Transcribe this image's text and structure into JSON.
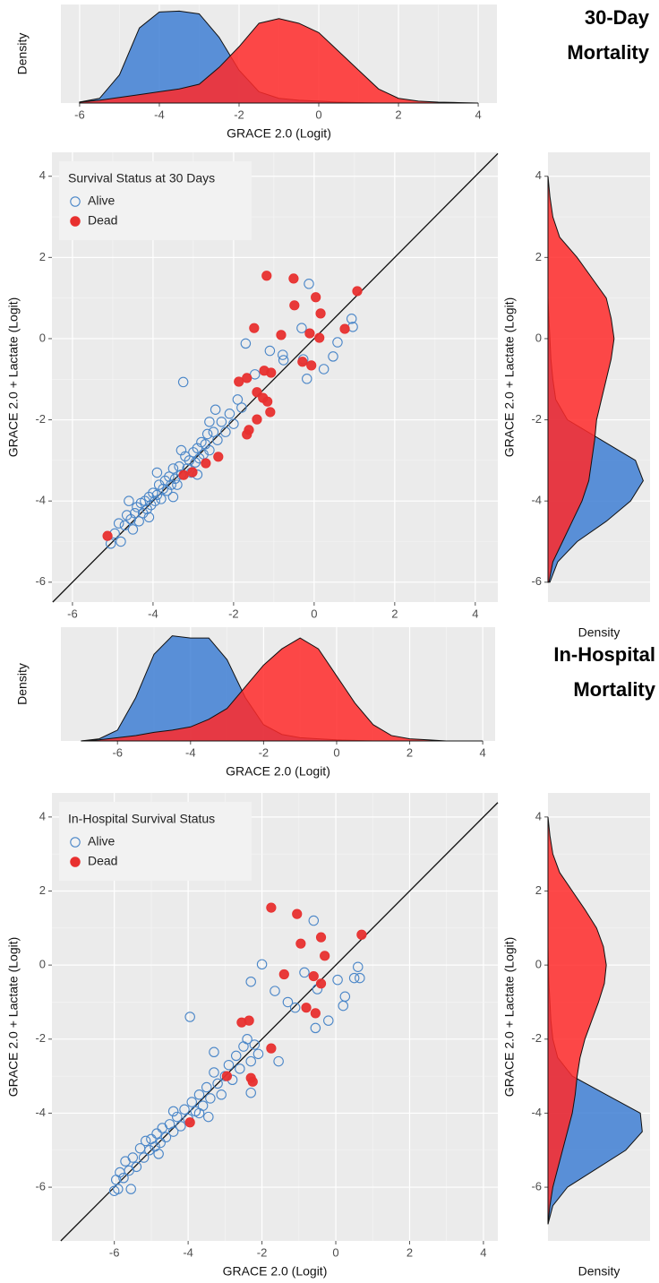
{
  "chart_data": [
    {
      "type": "density",
      "title": "30-Day Mortality",
      "x_label": "GRACE 2.0 (Logit)",
      "y_label": "Density",
      "x": [
        -6,
        -5.5,
        -5,
        -4.5,
        -4,
        -3.5,
        -3,
        -2.5,
        -2,
        -1.5,
        -1,
        -0.5,
        0,
        0.5,
        1,
        1.5,
        2,
        2.5,
        3,
        3.5,
        4
      ],
      "series": [
        {
          "name": "Alive",
          "color": "#3f7fd4",
          "values": [
            0.01,
            0.05,
            0.3,
            0.8,
            0.97,
            0.98,
            0.95,
            0.7,
            0.35,
            0.12,
            0.05,
            0.03,
            0.02,
            0.01,
            0.005,
            0,
            0,
            0,
            0,
            0,
            0
          ]
        },
        {
          "name": "Dead",
          "color": "#ff2a2a",
          "values": [
            0.01,
            0.03,
            0.06,
            0.09,
            0.12,
            0.15,
            0.2,
            0.38,
            0.6,
            0.85,
            0.9,
            0.85,
            0.75,
            0.55,
            0.35,
            0.15,
            0.05,
            0.02,
            0.01,
            0.005,
            0
          ]
        }
      ],
      "fill_alpha": 0.85,
      "xlim": [
        -6.47,
        4.47
      ],
      "xticks": [
        -6,
        -4,
        -2,
        0,
        2,
        4
      ],
      "ylim": [
        0,
        1.05
      ],
      "grid": true
    },
    {
      "type": "scatter",
      "x_label": "GRACE 2.0 (Logit)",
      "y_label": "GRACE 2.0 + Lactate (Logit)",
      "legend_title": "Survival Status at 30 Days",
      "legend": "top-left",
      "identity_line": true,
      "grid": true,
      "xlim": [
        -6.51,
        4.56
      ],
      "xticks": [
        -6,
        -4,
        -2,
        0,
        2,
        4
      ],
      "ylim": [
        -6.49,
        4.59
      ],
      "yticks": [
        -6,
        -4,
        -2,
        0,
        2,
        4
      ],
      "series": [
        {
          "name": "Alive",
          "color": "#4a86c8",
          "marker": "open",
          "x": [
            -5.05,
            -4.95,
            -4.85,
            -4.8,
            -4.7,
            -4.65,
            -4.55,
            -4.5,
            -4.45,
            -4.4,
            -4.35,
            -4.3,
            -4.25,
            -4.2,
            -4.15,
            -4.1,
            -4.05,
            -4.0,
            -3.95,
            -3.9,
            -3.85,
            -3.8,
            -3.75,
            -3.7,
            -3.65,
            -3.6,
            -3.55,
            -3.5,
            -3.45,
            -3.4,
            -3.35,
            -3.3,
            -3.25,
            -3.2,
            -3.15,
            -3.1,
            -3.05,
            -3.0,
            -2.95,
            -2.9,
            -2.85,
            -2.8,
            -2.75,
            -2.7,
            -2.65,
            -2.6,
            -2.5,
            -2.45,
            -2.4,
            -2.3,
            -2.2,
            -2.1,
            -2.0,
            -1.9,
            -1.8,
            -1.7,
            -1.47,
            -1.1,
            -0.78,
            -0.76,
            -0.31,
            -0.27,
            -0.18,
            -0.13,
            0.24,
            0.47,
            0.58,
            0.93,
            0.96,
            -4.6,
            -3.9,
            -3.3,
            -2.6,
            -4.1,
            -3.5,
            -2.9
          ],
          "values": [
            -5.05,
            -4.8,
            -4.55,
            -5.0,
            -4.6,
            -4.35,
            -4.45,
            -4.7,
            -4.3,
            -4.15,
            -4.5,
            -4.05,
            -4.3,
            -4.0,
            -4.2,
            -3.9,
            -4.1,
            -3.8,
            -4.0,
            -3.85,
            -3.6,
            -3.95,
            -3.7,
            -3.5,
            -3.75,
            -3.4,
            -3.6,
            -3.2,
            -3.45,
            -3.6,
            -3.15,
            -3.35,
            -1.07,
            -2.9,
            -3.2,
            -3.0,
            -3.3,
            -2.8,
            -3.05,
            -2.7,
            -2.95,
            -2.55,
            -2.85,
            -2.6,
            -2.35,
            -2.75,
            -2.3,
            -1.75,
            -2.5,
            -2.05,
            -2.3,
            -1.85,
            -2.1,
            -1.5,
            -1.7,
            -0.12,
            -0.88,
            -0.3,
            -0.4,
            -0.53,
            0.26,
            -0.51,
            -0.99,
            1.35,
            -0.75,
            -0.44,
            -0.09,
            0.49,
            0.29,
            -4.0,
            -3.3,
            -2.75,
            -2.05,
            -4.4,
            -3.9,
            -3.35
          ]
        },
        {
          "name": "Dead",
          "color": "#e8302f",
          "marker": "filled",
          "x": [
            -1.18,
            -0.51,
            0.04,
            -0.49,
            1.07,
            0.16,
            -1.49,
            -0.82,
            -0.11,
            0.76,
            0.13,
            -1.07,
            -0.07,
            -0.29,
            -1.67,
            -1.87,
            -1.24,
            -1.27,
            -1.16,
            -1.42,
            -1.09,
            -1.42,
            -1.62,
            -1.67,
            -2.38,
            -2.69,
            -3.02,
            -3.24,
            -5.13
          ],
          "values": [
            1.55,
            1.48,
            1.02,
            0.82,
            1.17,
            0.62,
            0.26,
            0.09,
            0.13,
            0.24,
            0.02,
            -0.84,
            -0.66,
            -0.57,
            -0.97,
            -1.06,
            -0.79,
            -1.46,
            -1.55,
            -1.32,
            -1.81,
            -1.99,
            -2.25,
            -2.36,
            -2.91,
            -3.07,
            -3.29,
            -3.36,
            -4.86
          ]
        }
      ]
    },
    {
      "type": "density",
      "x_label": "Density",
      "y_label": "GRACE 2.0 + Lactate (Logit)",
      "y": [
        -6,
        -5.5,
        -5,
        -4.5,
        -4,
        -3.5,
        -3,
        -2.5,
        -2,
        -1.5,
        -1,
        -0.5,
        0,
        0.5,
        1,
        1.5,
        2,
        2.5,
        3,
        3.5,
        4
      ],
      "series": [
        {
          "name": "Alive",
          "color": "#3f7fd4",
          "values": [
            0.02,
            0.1,
            0.3,
            0.6,
            0.85,
            0.98,
            0.9,
            0.55,
            0.2,
            0.08,
            0.05,
            0.03,
            0.02,
            0.01,
            0,
            0,
            0,
            0,
            0,
            0,
            0
          ]
        },
        {
          "name": "Dead",
          "color": "#ff2a2a",
          "values": [
            0.01,
            0.05,
            0.15,
            0.25,
            0.35,
            0.42,
            0.45,
            0.48,
            0.5,
            0.55,
            0.6,
            0.65,
            0.68,
            0.65,
            0.6,
            0.45,
            0.3,
            0.12,
            0.05,
            0.02,
            0
          ]
        }
      ],
      "fill_alpha": 0.85,
      "ylim": [
        -6.49,
        4.59
      ],
      "yticks": [
        -6,
        -4,
        -2,
        0,
        2,
        4
      ],
      "xlim": [
        0,
        1.05
      ],
      "grid": true
    },
    {
      "type": "density",
      "title": "In-Hospital Mortality",
      "x_label": "GRACE 2.0 (Logit)",
      "y_label": "Density",
      "x": [
        -7,
        -6.5,
        -6,
        -5.5,
        -5,
        -4.5,
        -4,
        -3.5,
        -3,
        -2.5,
        -2,
        -1.5,
        -1,
        -0.5,
        0,
        0.5,
        1,
        1.5,
        2,
        2.5,
        3,
        3.5,
        4
      ],
      "series": [
        {
          "name": "Alive",
          "color": "#3f7fd4",
          "values": [
            0,
            0.02,
            0.1,
            0.4,
            0.8,
            0.97,
            0.95,
            0.95,
            0.75,
            0.4,
            0.15,
            0.06,
            0.03,
            0.02,
            0.01,
            0.005,
            0,
            0,
            0,
            0,
            0,
            0,
            0
          ]
        },
        {
          "name": "Dead",
          "color": "#ff2a2a",
          "values": [
            0,
            0.01,
            0.03,
            0.05,
            0.08,
            0.1,
            0.13,
            0.2,
            0.3,
            0.5,
            0.7,
            0.85,
            0.95,
            0.85,
            0.6,
            0.35,
            0.15,
            0.05,
            0.02,
            0.01,
            0,
            0,
            0
          ]
        }
      ],
      "fill_alpha": 0.85,
      "xlim": [
        -7.55,
        4.34
      ],
      "xticks": [
        -6,
        -4,
        -2,
        0,
        2,
        4
      ],
      "ylim": [
        0,
        1.05
      ],
      "grid": true
    },
    {
      "type": "scatter",
      "x_label": "GRACE 2.0 (Logit)",
      "y_label": "GRACE 2.0 + Lactate (Logit)",
      "legend_title": "In-Hospital Survival Status",
      "legend": "top-left",
      "identity_line": true,
      "grid": true,
      "xlim": [
        -7.69,
        4.39
      ],
      "xticks": [
        -6,
        -4,
        -2,
        0,
        2,
        4
      ],
      "ylim": [
        -7.45,
        4.65
      ],
      "yticks": [
        -6,
        -4,
        -2,
        0,
        2,
        4
      ],
      "series": [
        {
          "name": "Alive",
          "color": "#4a86c8",
          "marker": "open",
          "x": [
            -6.0,
            -5.95,
            -5.9,
            -5.85,
            -5.75,
            -5.7,
            -5.6,
            -5.55,
            -5.5,
            -5.4,
            -5.3,
            -5.2,
            -5.15,
            -5.05,
            -5.0,
            -4.9,
            -4.85,
            -4.75,
            -4.7,
            -4.6,
            -4.5,
            -4.4,
            -4.3,
            -4.2,
            -4.1,
            -4.0,
            -3.95,
            -3.9,
            -3.8,
            -3.7,
            -3.6,
            -3.5,
            -3.45,
            -3.4,
            -3.3,
            -3.2,
            -3.1,
            -3.0,
            -2.9,
            -2.8,
            -2.7,
            -2.6,
            -2.5,
            -2.4,
            -2.3,
            -2.3,
            -2.2,
            -2.1,
            -2.0,
            -2.3,
            -1.65,
            -1.55,
            -1.3,
            -1.1,
            -0.85,
            -0.6,
            -0.55,
            -0.5,
            -0.2,
            0.05,
            0.2,
            0.25,
            0.5,
            0.6,
            0.65,
            -4.8,
            -4.4,
            -3.7,
            -3.3
          ],
          "values": [
            -6.1,
            -5.8,
            -6.05,
            -5.6,
            -5.75,
            -5.3,
            -5.55,
            -6.05,
            -5.2,
            -5.45,
            -4.95,
            -5.2,
            -4.75,
            -5.0,
            -4.7,
            -4.9,
            -4.55,
            -4.8,
            -4.4,
            -4.65,
            -4.3,
            -4.5,
            -4.1,
            -4.35,
            -3.9,
            -4.15,
            -1.4,
            -3.7,
            -3.95,
            -3.5,
            -3.8,
            -3.3,
            -4.1,
            -3.6,
            -2.35,
            -3.2,
            -3.5,
            -3.0,
            -2.7,
            -3.1,
            -2.45,
            -2.8,
            -2.2,
            -2.0,
            -2.6,
            -3.45,
            -2.15,
            -2.4,
            0.02,
            -0.45,
            -0.7,
            -2.6,
            -1.0,
            -1.15,
            -0.2,
            1.2,
            -1.7,
            -0.65,
            -1.5,
            -0.4,
            -1.1,
            -0.85,
            -0.35,
            -0.05,
            -0.35,
            -5.1,
            -3.95,
            -4.0,
            -2.9
          ]
        },
        {
          "name": "Dead",
          "color": "#e8302f",
          "marker": "filled",
          "x": [
            -1.75,
            -1.05,
            -0.4,
            -0.95,
            0.7,
            -0.3,
            -1.4,
            -0.6,
            -0.4,
            -0.55,
            -0.8,
            -2.55,
            -2.35,
            -1.75,
            -2.3,
            -2.25,
            -2.95,
            -3.95
          ],
          "values": [
            1.55,
            1.38,
            0.75,
            0.58,
            0.82,
            0.25,
            -0.25,
            -0.3,
            -0.5,
            -1.3,
            -1.15,
            -1.55,
            -1.5,
            -2.25,
            -3.05,
            -3.15,
            -3.0,
            -4.25
          ]
        }
      ]
    },
    {
      "type": "density",
      "x_label": "Density",
      "y_label": "GRACE 2.0 + Lactate (Logit)",
      "y": [
        -7,
        -6.5,
        -6,
        -5.5,
        -5,
        -4.5,
        -4,
        -3.5,
        -3,
        -2.5,
        -2,
        -1.5,
        -1,
        -0.5,
        0,
        0.5,
        1,
        1.5,
        2,
        2.5,
        3,
        3.5,
        4
      ],
      "series": [
        {
          "name": "Alive",
          "color": "#3f7fd4",
          "values": [
            0,
            0.05,
            0.2,
            0.5,
            0.8,
            0.97,
            0.95,
            0.6,
            0.25,
            0.1,
            0.05,
            0.03,
            0.02,
            0.01,
            0.005,
            0,
            0,
            0,
            0,
            0,
            0,
            0,
            0
          ]
        },
        {
          "name": "Dead",
          "color": "#ff2a2a",
          "values": [
            0,
            0.02,
            0.05,
            0.1,
            0.15,
            0.2,
            0.25,
            0.28,
            0.3,
            0.33,
            0.38,
            0.45,
            0.52,
            0.58,
            0.6,
            0.57,
            0.5,
            0.38,
            0.25,
            0.12,
            0.05,
            0.02,
            0
          ]
        }
      ],
      "fill_alpha": 0.85,
      "ylim": [
        -7.45,
        4.65
      ],
      "yticks": [
        -6,
        -4,
        -2,
        0,
        2,
        4
      ],
      "xlim": [
        0,
        1.05
      ],
      "grid": true
    }
  ]
}
